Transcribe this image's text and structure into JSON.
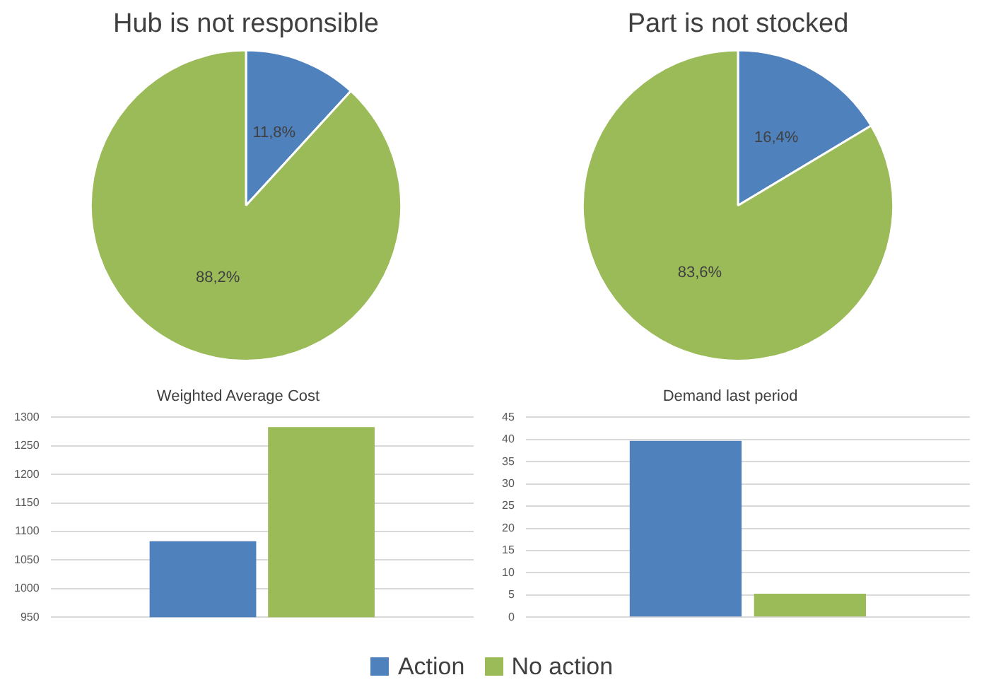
{
  "chart_data": [
    {
      "type": "pie",
      "title": "Hub is not responsible",
      "categories": [
        "Action",
        "No action"
      ],
      "values": [
        11.8,
        88.2
      ],
      "colors": [
        "#4f81bd",
        "#9bbb59"
      ],
      "value_labels": [
        "11,8%",
        "88,2%"
      ],
      "legend": "bottom"
    },
    {
      "type": "pie",
      "title": "Part is not stocked",
      "categories": [
        null,
        null
      ],
      "values": [
        16.4,
        83.6
      ],
      "colors": [
        "#4f81bd",
        "#9bbb59"
      ],
      "value_labels": [
        "16,4%",
        "83,6%"
      ]
    },
    {
      "type": "bar",
      "title": "Weighted Average Cost",
      "categories": [
        null
      ],
      "series": [
        {
          "color": "#4f81bd",
          "values": [
            1083
          ]
        },
        {
          "color": "#9bbb59",
          "values": [
            1283
          ]
        }
      ],
      "ylim": [
        950,
        1300
      ],
      "yticks": [
        950,
        1000,
        1050,
        1100,
        1150,
        1200,
        1250,
        1300
      ],
      "grid": "y"
    },
    {
      "type": "bar",
      "title": "Demand last period",
      "categories": [
        null
      ],
      "series": [
        {
          "color": "#4f81bd",
          "values": [
            39.7
          ]
        },
        {
          "color": "#9bbb59",
          "values": [
            5.3
          ]
        }
      ],
      "ylim": [
        0,
        45
      ],
      "yticks": [
        0,
        5,
        10,
        15,
        20,
        25,
        30,
        35,
        40,
        45
      ],
      "grid": "y"
    }
  ]
}
